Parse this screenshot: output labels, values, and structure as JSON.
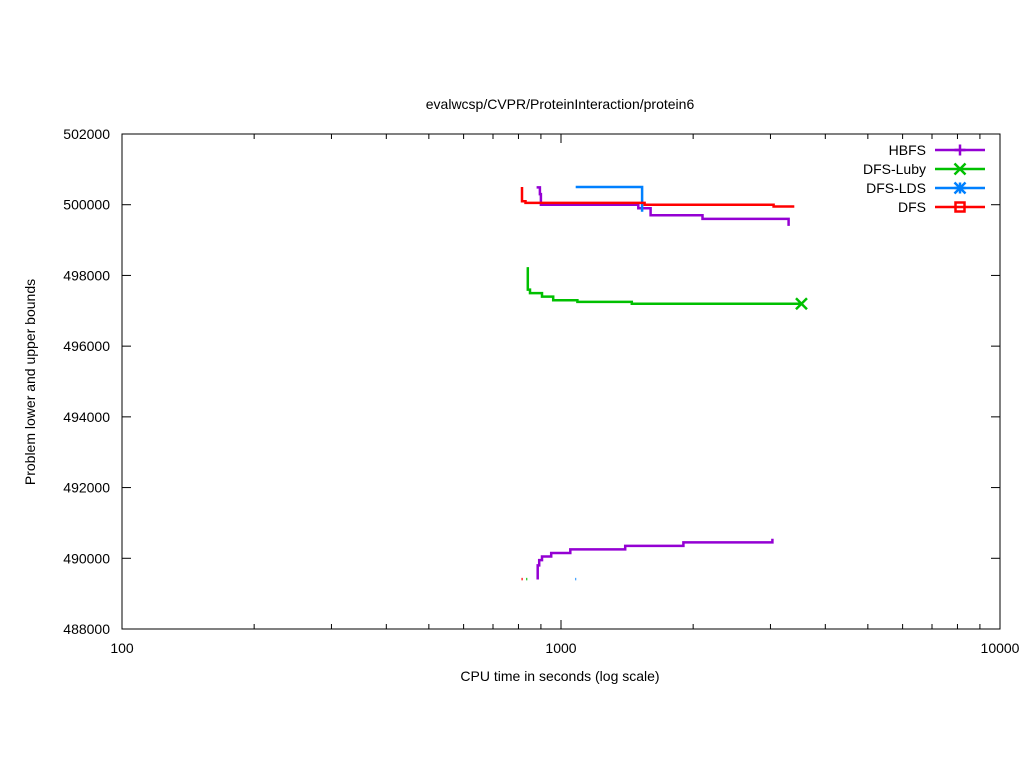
{
  "chart_data": {
    "type": "line",
    "title": "evalwcsp/CVPR/ProteinInteraction/protein6",
    "xlabel": "CPU time in seconds (log scale)",
    "ylabel": "Problem lower and upper bounds",
    "xscale": "log",
    "xlim": [
      100,
      10000
    ],
    "ylim": [
      488000,
      502000
    ],
    "grid": false,
    "legend_position": "top-right",
    "x_ticks": [
      {
        "value": 100,
        "label": "100"
      },
      {
        "value": 1000,
        "label": "1000"
      },
      {
        "value": 10000,
        "label": "10000"
      }
    ],
    "y_ticks": [
      {
        "value": 488000,
        "label": "488000"
      },
      {
        "value": 490000,
        "label": "490000"
      },
      {
        "value": 492000,
        "label": "492000"
      },
      {
        "value": 494000,
        "label": "494000"
      },
      {
        "value": 496000,
        "label": "496000"
      },
      {
        "value": 498000,
        "label": "498000"
      },
      {
        "value": 500000,
        "label": "500000"
      },
      {
        "value": 502000,
        "label": "502000"
      }
    ],
    "series": [
      {
        "name": "HBFS",
        "color": "#9400d3",
        "marker": "plus",
        "marker_last": false,
        "paths": [
          [
            [
              880,
              500490
            ],
            [
              895,
              500490
            ],
            [
              895,
              500300
            ],
            [
              900,
              500300
            ],
            [
              900,
              500000
            ],
            [
              1500,
              500000
            ],
            [
              1500,
              499900
            ],
            [
              1600,
              499900
            ],
            [
              1600,
              499700
            ],
            [
              2100,
              499700
            ],
            [
              2100,
              499600
            ],
            [
              3300,
              499600
            ],
            [
              3300,
              499400
            ]
          ],
          [
            [
              885,
              489400
            ],
            [
              885,
              489800
            ],
            [
              892,
              489800
            ],
            [
              892,
              489950
            ],
            [
              905,
              489950
            ],
            [
              905,
              490050
            ],
            [
              950,
              490050
            ],
            [
              950,
              490150
            ],
            [
              1050,
              490150
            ],
            [
              1050,
              490250
            ],
            [
              1400,
              490250
            ],
            [
              1400,
              490350
            ],
            [
              1900,
              490350
            ],
            [
              1900,
              490450
            ],
            [
              3030,
              490450
            ],
            [
              3030,
              490550
            ]
          ]
        ]
      },
      {
        "name": "DFS-Luby",
        "color": "#00c000",
        "marker": "cross",
        "marker_last": true,
        "paths": [
          [
            [
              835,
              498200
            ],
            [
              840,
              498200
            ],
            [
              840,
              497600
            ],
            [
              850,
              497600
            ],
            [
              850,
              497500
            ],
            [
              905,
              497500
            ],
            [
              905,
              497400
            ],
            [
              960,
              497400
            ],
            [
              960,
              497300
            ],
            [
              1090,
              497300
            ],
            [
              1090,
              497250
            ],
            [
              1450,
              497250
            ],
            [
              1450,
              497200
            ],
            [
              3530,
              497200
            ]
          ],
          [
            [
              833,
              489410
            ],
            [
              838,
              489410
            ]
          ]
        ]
      },
      {
        "name": "DFS-LDS",
        "color": "#0080ff",
        "marker": "star",
        "marker_last": false,
        "paths": [
          [
            [
              1080,
              500500
            ],
            [
              1530,
              500500
            ],
            [
              1530,
              499800
            ]
          ],
          [
            [
              1078,
              489410
            ],
            [
              1083,
              489410
            ]
          ]
        ]
      },
      {
        "name": "DFS",
        "color": "#ff0000",
        "marker": "square",
        "marker_last": false,
        "paths": [
          [
            [
              815,
              500500
            ],
            [
              815,
              500100
            ],
            [
              830,
              500100
            ],
            [
              830,
              500050
            ],
            [
              1550,
              500050
            ],
            [
              1550,
              500000
            ],
            [
              3050,
              500000
            ],
            [
              3050,
              499950
            ],
            [
              3400,
              499950
            ]
          ],
          [
            [
              813,
              489410
            ],
            [
              818,
              489410
            ]
          ]
        ]
      }
    ]
  }
}
